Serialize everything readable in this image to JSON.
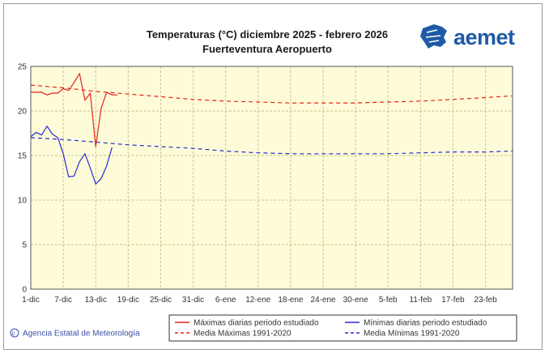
{
  "chart_data": {
    "type": "line",
    "title": "Temperaturas (°C) diciembre 2025 - febrero 2026",
    "subtitle": "Fuerteventura Aeropuerto",
    "x_tick_labels": [
      "1-dic",
      "7-dic",
      "13-dic",
      "19-dic",
      "25-dic",
      "31-dic",
      "6-ene",
      "12-ene",
      "18-ene",
      "24-ene",
      "30-ene",
      "5-feb",
      "11-feb",
      "17-feb",
      "23-feb"
    ],
    "x_tick_days": [
      0,
      6,
      12,
      18,
      24,
      30,
      36,
      42,
      48,
      54,
      60,
      66,
      72,
      78,
      84
    ],
    "xlim": [
      0,
      89
    ],
    "ylim": [
      0,
      25
    ],
    "y_ticks": [
      0,
      5,
      10,
      15,
      20,
      25
    ],
    "y_tick_labels": [
      "0",
      "5",
      "10",
      "15",
      "20",
      "25"
    ],
    "series": [
      {
        "name": "Máximas diarias periodo estudiado",
        "color": "#e8201e",
        "dash": "",
        "x": [
          0,
          1,
          2,
          3,
          4,
          5,
          6,
          7,
          8,
          9,
          10,
          11,
          12,
          13,
          14,
          15,
          16
        ],
        "y": [
          22.1,
          22.1,
          22.1,
          21.8,
          22.0,
          22.0,
          22.5,
          22.3,
          23.2,
          24.2,
          21.2,
          22.0,
          16.0,
          20.3,
          22.1,
          21.8,
          21.8
        ]
      },
      {
        "name": "Media Máximas 1991-2020",
        "color": "#e8201e",
        "dash": "5,4",
        "x": [
          0,
          6,
          12,
          18,
          24,
          30,
          36,
          42,
          48,
          54,
          60,
          66,
          72,
          78,
          84,
          89
        ],
        "y": [
          22.9,
          22.6,
          22.2,
          21.9,
          21.6,
          21.3,
          21.1,
          21.0,
          20.9,
          20.9,
          20.9,
          21.0,
          21.1,
          21.3,
          21.5,
          21.7
        ]
      },
      {
        "name": "Mínimas diarias periodo estudiado",
        "color": "#2a2ad6",
        "dash": "",
        "x": [
          0,
          1,
          2,
          3,
          4,
          5,
          6,
          7,
          8,
          9,
          10,
          11,
          12,
          13,
          14,
          15
        ],
        "y": [
          17.1,
          17.6,
          17.3,
          18.3,
          17.4,
          17.0,
          15.2,
          12.6,
          12.7,
          14.3,
          15.2,
          13.6,
          11.8,
          12.4,
          13.8,
          15.9
        ]
      },
      {
        "name": "Media Mínimas 1991-2020",
        "color": "#2a2ad6",
        "dash": "5,4",
        "x": [
          0,
          6,
          12,
          18,
          24,
          30,
          36,
          42,
          48,
          54,
          60,
          66,
          72,
          78,
          84,
          89
        ],
        "y": [
          17.0,
          16.8,
          16.5,
          16.2,
          16.0,
          15.8,
          15.5,
          15.3,
          15.2,
          15.2,
          15.2,
          15.2,
          15.3,
          15.4,
          15.4,
          15.5
        ]
      }
    ]
  },
  "legend": {
    "items": [
      {
        "label": "Máximas diarias periodo estudiado",
        "color": "#e8201e",
        "dashed": false
      },
      {
        "label": "Mínimas diarias periodo estudiado",
        "color": "#2a2ad6",
        "dashed": false
      },
      {
        "label": "Media Máximas 1991-2020",
        "color": "#e8201e",
        "dashed": true
      },
      {
        "label": "Media Mínimas 1991-2020",
        "color": "#2a2ad6",
        "dashed": true
      }
    ]
  },
  "logo": {
    "text": "aemet",
    "color": "#1f5aa6"
  },
  "credit": {
    "text": "© Agencia Estatal de Meteorología"
  },
  "colors": {
    "plot_background": "#fefcd8",
    "grid": "#c9c28c"
  }
}
